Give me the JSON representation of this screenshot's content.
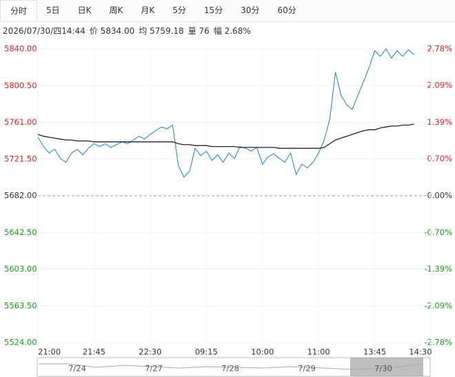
{
  "tabs": [
    "分时",
    "5日",
    "日K",
    "周K",
    "月K",
    "5分",
    "15分",
    "30分",
    "60分"
  ],
  "info": [
    "2026/07/30/四14:44",
    "价 5834.00",
    "均 5759.18",
    "量 76",
    "幅 2.68%"
  ],
  "navigator": {
    "labels": [
      "7/24",
      "7/27",
      "7/28",
      "7/29",
      "7/30"
    ]
  },
  "chart_data": {
    "type": "line",
    "categories": [
      "21:00",
      null,
      null,
      null,
      null,
      null,
      null,
      null,
      null,
      null,
      "21:45",
      null,
      null,
      null,
      null,
      null,
      null,
      null,
      null,
      null,
      "22:30",
      null,
      null,
      null,
      null,
      null,
      null,
      null,
      null,
      null,
      "09:15",
      null,
      null,
      null,
      null,
      null,
      null,
      null,
      null,
      null,
      "10:00",
      null,
      null,
      null,
      null,
      null,
      null,
      null,
      null,
      null,
      "11:00",
      null,
      null,
      null,
      null,
      null,
      null,
      null,
      null,
      null,
      "13:45",
      null,
      null,
      null,
      null,
      null,
      null,
      null,
      null,
      null,
      "14:30"
    ],
    "series": [
      {
        "name": "价",
        "color": "#2a8bc8",
        "values": [
          5745,
          5735,
          5728,
          5732,
          5722,
          5718,
          5728,
          5732,
          5726,
          5733,
          5738,
          5735,
          5738,
          5734,
          5737,
          5740,
          5738,
          5742,
          5746,
          5743,
          5748,
          5752,
          5756,
          5754,
          5758,
          5715,
          5702,
          5708,
          5733,
          5725,
          5730,
          5720,
          5726,
          5718,
          5728,
          5722,
          5735,
          5733,
          5730,
          5734,
          5716,
          5724,
          5727,
          5722,
          5718,
          5728,
          5705,
          5716,
          5712,
          5718,
          5728,
          5742,
          5765,
          5815,
          5790,
          5780,
          5775,
          5790,
          5805,
          5820,
          5838,
          5832,
          5840,
          5830,
          5838,
          5832,
          5839,
          5834,
          null,
          null,
          null
        ]
      },
      {
        "name": "均",
        "color": "#222222",
        "values": [
          5748,
          5746,
          5745,
          5744,
          5743,
          5742,
          5742,
          5741,
          5741,
          5741,
          5740,
          5740,
          5740,
          5740,
          5740,
          5740,
          5740,
          5740,
          5740,
          5740,
          5740,
          5740,
          5740,
          5740,
          5740,
          5738,
          5737,
          5737,
          5736,
          5736,
          5736,
          5735,
          5735,
          5735,
          5735,
          5735,
          5734,
          5734,
          5734,
          5734,
          5734,
          5734,
          5734,
          5733,
          5733,
          5733,
          5733,
          5733,
          5733,
          5733,
          5733,
          5734,
          5738,
          5742,
          5744,
          5746,
          5748,
          5750,
          5752,
          5753,
          5753,
          5755,
          5756,
          5757,
          5757,
          5758,
          5758,
          5759.18,
          null,
          null,
          null
        ]
      }
    ],
    "ylim": [
      5524,
      5840
    ],
    "yticks": [
      {
        "value": 5840,
        "label": "5840.00"
      },
      {
        "value": 5800.5,
        "label": "5800.50"
      },
      {
        "value": 5761,
        "label": "5761.00"
      },
      {
        "value": 5721.5,
        "label": "5721.50"
      },
      {
        "value": 5682,
        "label": "5682.00"
      },
      {
        "value": 5642.5,
        "label": "5642.50"
      },
      {
        "value": 5603,
        "label": "5603.00"
      },
      {
        "value": 5563.5,
        "label": "5563.50"
      },
      {
        "value": 5524,
        "label": "5524.00"
      }
    ],
    "y2lim": [
      -2.78,
      2.78
    ],
    "y2ticks": [
      {
        "value": 2.78,
        "label": "2.78%"
      },
      {
        "value": 2.09,
        "label": "2.09%"
      },
      {
        "value": 1.39,
        "label": "1.39%"
      },
      {
        "value": 0.7,
        "label": "0.70%"
      },
      {
        "value": 0,
        "label": "0.00%"
      },
      {
        "value": -0.7,
        "label": "-0.70%"
      },
      {
        "value": -1.39,
        "label": "-1.39%"
      },
      {
        "value": -2.09,
        "label": "-2.09%"
      },
      {
        "value": -2.78,
        "label": "-2.78%"
      }
    ],
    "baseline": 5682,
    "up_color": "#e02020",
    "down_color": "#1a9c1a",
    "grid": true
  }
}
